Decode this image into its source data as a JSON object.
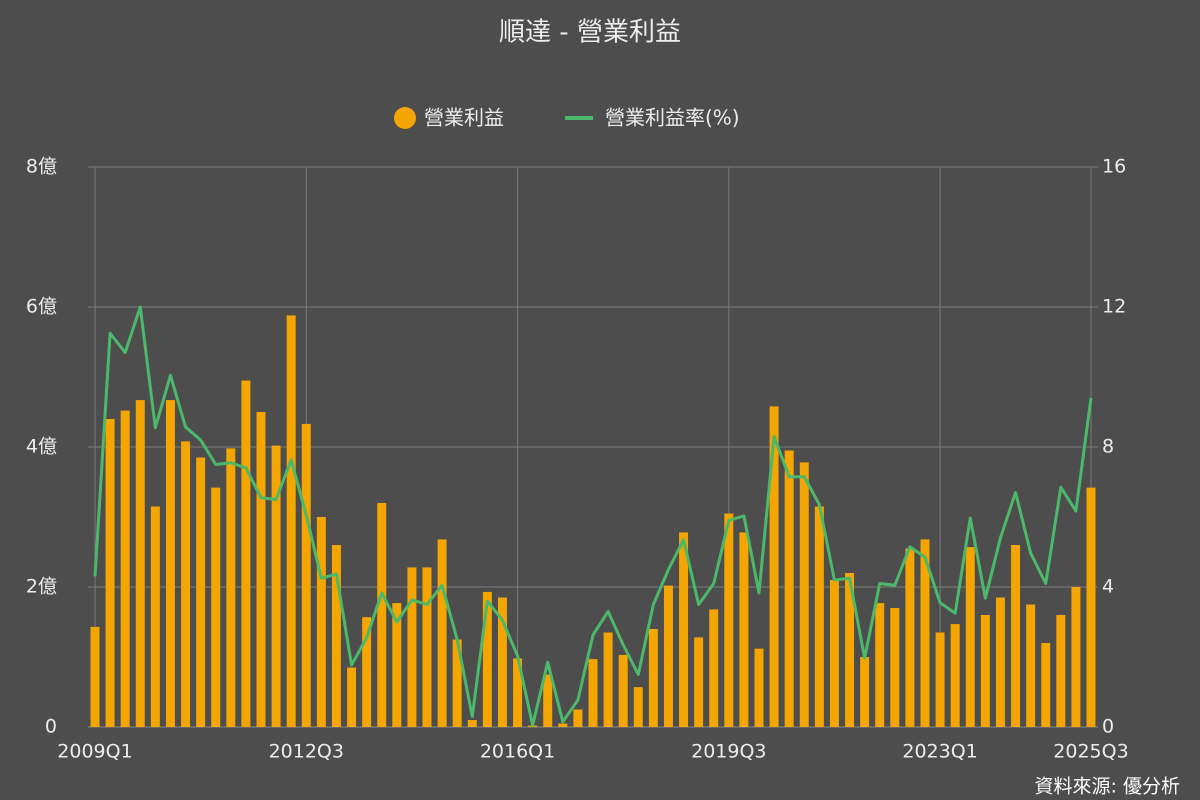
{
  "chart_data": {
    "type": "bar-line",
    "title": "順達 - 營業利益",
    "source": "資料來源: 優分析",
    "categories": [
      "2009Q1",
      null,
      null,
      null,
      null,
      null,
      null,
      null,
      null,
      null,
      null,
      null,
      null,
      null,
      "2012Q3",
      null,
      null,
      null,
      null,
      null,
      null,
      null,
      null,
      null,
      null,
      null,
      null,
      null,
      "2016Q1",
      null,
      null,
      null,
      null,
      null,
      null,
      null,
      null,
      null,
      null,
      null,
      null,
      null,
      "2019Q3",
      null,
      null,
      null,
      null,
      null,
      null,
      null,
      null,
      null,
      null,
      null,
      null,
      null,
      "2023Q1",
      null,
      null,
      null,
      null,
      null,
      null,
      null,
      null,
      null,
      "2025Q3"
    ],
    "series": [
      {
        "name": "營業利益",
        "color": "#f5a500",
        "type": "bar",
        "values": [
          1.43,
          4.4,
          4.52,
          4.67,
          3.15,
          4.67,
          4.08,
          3.85,
          3.42,
          3.98,
          4.95,
          4.5,
          4.02,
          5.88,
          4.33,
          3.0,
          2.6,
          0.85,
          1.57,
          3.2,
          1.77,
          2.28,
          2.28,
          2.68,
          1.25,
          0.1,
          1.93,
          1.85,
          0.98,
          0.02,
          0.75,
          0.05,
          0.25,
          0.97,
          1.35,
          1.03,
          0.57,
          1.4,
          2.02,
          2.78,
          1.28,
          1.68,
          3.05,
          2.78,
          1.12,
          4.58,
          3.95,
          3.78,
          3.15,
          2.1,
          2.2,
          1.0,
          1.77,
          1.7,
          2.55,
          2.68,
          1.35,
          1.47,
          2.57,
          1.6,
          1.85,
          2.6,
          1.75,
          1.2,
          1.6,
          2.0,
          3.42
        ]
      },
      {
        "name": "營業利益率(%)",
        "color": "#4cb86a",
        "type": "line",
        "axis": "y2",
        "values": [
          4.3,
          11.25,
          10.7,
          12.0,
          8.55,
          10.05,
          8.57,
          8.2,
          7.5,
          7.55,
          7.4,
          6.55,
          6.5,
          7.63,
          6.05,
          4.25,
          4.37,
          1.77,
          2.55,
          3.83,
          3.0,
          3.63,
          3.5,
          4.05,
          2.5,
          0.3,
          3.6,
          3.05,
          2.03,
          0.05,
          1.85,
          0.15,
          0.77,
          2.63,
          3.3,
          2.35,
          1.5,
          3.5,
          4.5,
          5.35,
          3.5,
          4.1,
          5.9,
          6.03,
          3.83,
          8.3,
          7.15,
          7.15,
          6.35,
          4.2,
          4.25,
          1.97,
          4.1,
          4.05,
          5.15,
          4.85,
          3.55,
          3.25,
          5.97,
          3.68,
          5.4,
          6.7,
          4.97,
          4.1,
          6.85,
          6.17,
          9.4
        ]
      }
    ],
    "ylim": [
      0,
      8
    ],
    "yticks": [
      0,
      {
        "value": 2,
        "label": "2億"
      },
      {
        "value": 4,
        "label": "4億"
      },
      {
        "value": 6,
        "label": "6億"
      },
      {
        "value": 8,
        "label": "8億"
      }
    ],
    "y2lim": [
      0,
      16
    ],
    "y2ticks": [
      0,
      4,
      8,
      12,
      16
    ],
    "grid": true,
    "legend": "top"
  }
}
